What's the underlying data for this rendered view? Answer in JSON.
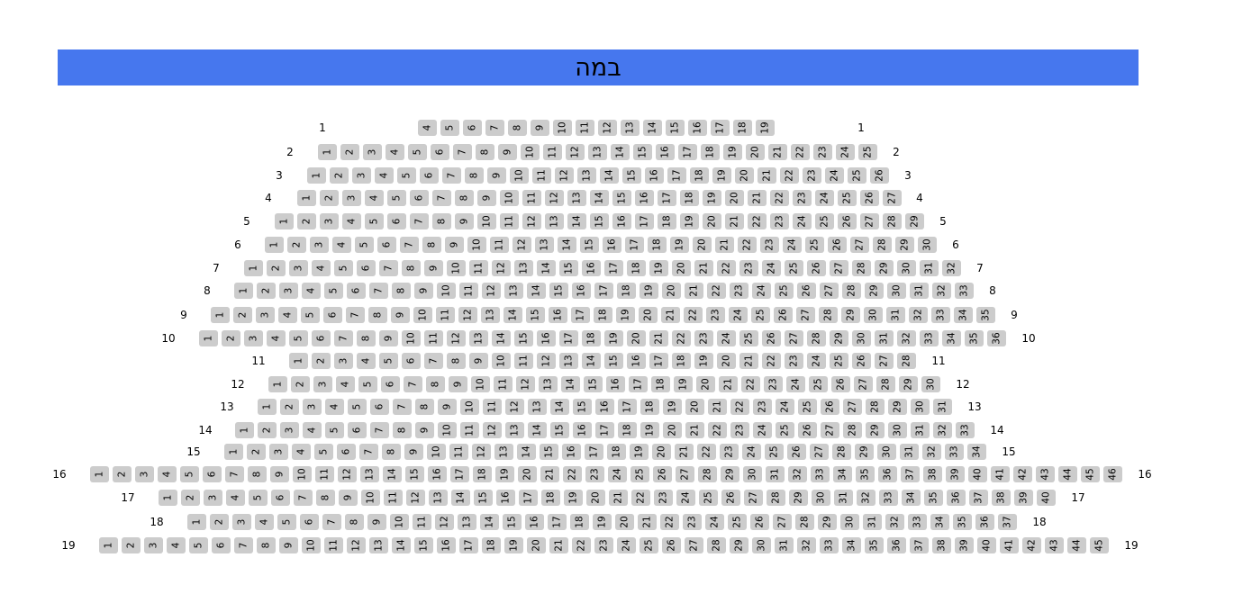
{
  "stage": {
    "label": "במה",
    "color": "#4677ee"
  },
  "seat_color": "#cccccc",
  "rows": [
    {
      "label": "1",
      "first": 4,
      "last": 19
    },
    {
      "label": "2",
      "first": 1,
      "last": 25
    },
    {
      "label": "3",
      "first": 1,
      "last": 26
    },
    {
      "label": "4",
      "first": 1,
      "last": 27
    },
    {
      "label": "5",
      "first": 1,
      "last": 29
    },
    {
      "label": "6",
      "first": 1,
      "last": 30
    },
    {
      "label": "7",
      "first": 1,
      "last": 32
    },
    {
      "label": "8",
      "first": 1,
      "last": 33
    },
    {
      "label": "9",
      "first": 1,
      "last": 35
    },
    {
      "label": "10",
      "first": 1,
      "last": 36
    },
    {
      "label": "11",
      "first": 1,
      "last": 28
    },
    {
      "label": "12",
      "first": 1,
      "last": 30
    },
    {
      "label": "13",
      "first": 1,
      "last": 31
    },
    {
      "label": "14",
      "first": 1,
      "last": 33
    },
    {
      "label": "15",
      "first": 1,
      "last": 34
    },
    {
      "label": "16",
      "first": 1,
      "last": 46
    },
    {
      "label": "17",
      "first": 1,
      "last": 40
    },
    {
      "label": "18",
      "first": 1,
      "last": 37
    },
    {
      "label": "19",
      "first": 1,
      "last": 45
    }
  ]
}
